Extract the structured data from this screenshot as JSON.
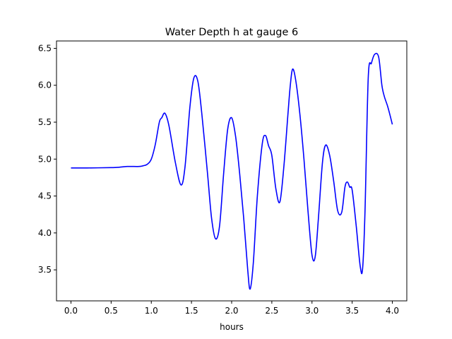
{
  "chart_data": {
    "type": "line",
    "title": "Water Depth h at gauge 6",
    "xlabel": "hours",
    "ylabel": "",
    "xlim": [
      -0.18,
      4.18
    ],
    "ylim": [
      3.08,
      6.6
    ],
    "xticks": [
      0.0,
      0.5,
      1.0,
      1.5,
      2.0,
      2.5,
      3.0,
      3.5,
      4.0
    ],
    "xtick_labels": [
      "0.0",
      "0.5",
      "1.0",
      "1.5",
      "2.0",
      "2.5",
      "3.0",
      "3.5",
      "4.0"
    ],
    "yticks": [
      3.5,
      4.0,
      4.5,
      5.0,
      5.5,
      6.0,
      6.5
    ],
    "ytick_labels": [
      "3.5",
      "4.0",
      "4.5",
      "5.0",
      "5.5",
      "6.0",
      "6.5"
    ],
    "grid": false,
    "series": [
      {
        "color": "#0000ff",
        "x": [
          0.0,
          0.2,
          0.5,
          0.6,
          0.7,
          0.85,
          0.9,
          0.95,
          1.0,
          1.05,
          1.1,
          1.13,
          1.17,
          1.22,
          1.3,
          1.37,
          1.42,
          1.48,
          1.53,
          1.58,
          1.63,
          1.7,
          1.75,
          1.8,
          1.85,
          1.9,
          1.95,
          2.0,
          2.05,
          2.1,
          2.15,
          2.2,
          2.23,
          2.27,
          2.32,
          2.38,
          2.42,
          2.46,
          2.5,
          2.55,
          2.6,
          2.65,
          2.7,
          2.73,
          2.76,
          2.8,
          2.85,
          2.9,
          2.95,
          3.0,
          3.04,
          3.08,
          3.13,
          3.17,
          3.22,
          3.27,
          3.32,
          3.37,
          3.41,
          3.44,
          3.47,
          3.5,
          3.55,
          3.6,
          3.63,
          3.66,
          3.7,
          3.74,
          3.78,
          3.83,
          3.87,
          3.9,
          3.94,
          3.97,
          4.0
        ],
        "values": [
          4.88,
          4.88,
          4.885,
          4.89,
          4.9,
          4.9,
          4.91,
          4.93,
          5.0,
          5.2,
          5.5,
          5.56,
          5.62,
          5.45,
          4.95,
          4.65,
          4.9,
          5.7,
          6.1,
          6.05,
          5.6,
          4.8,
          4.2,
          3.92,
          4.1,
          4.8,
          5.4,
          5.56,
          5.3,
          4.8,
          4.2,
          3.5,
          3.24,
          3.6,
          4.5,
          5.2,
          5.32,
          5.18,
          5.05,
          4.6,
          4.42,
          4.9,
          5.6,
          6.0,
          6.22,
          6.05,
          5.6,
          5.0,
          4.3,
          3.7,
          3.68,
          4.2,
          4.95,
          5.19,
          5.05,
          4.7,
          4.3,
          4.28,
          4.62,
          4.69,
          4.62,
          4.58,
          4.1,
          3.55,
          3.52,
          4.3,
          6.1,
          6.3,
          6.42,
          6.38,
          6.0,
          5.85,
          5.72,
          5.6,
          5.47
        ]
      }
    ]
  }
}
